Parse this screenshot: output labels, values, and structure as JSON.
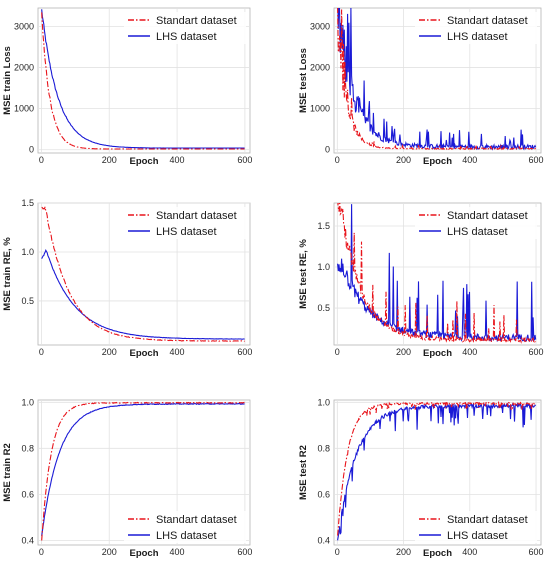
{
  "colors": {
    "standart": "#e8141b",
    "lhs": "#1a1ad6",
    "grid": "#e2e2e2",
    "axis": "#b5b5b5"
  },
  "legend": {
    "standart": "Standart dataset",
    "lhs": "LHS dataset",
    "position": "top-right"
  },
  "chart_data": [
    {
      "type": "line",
      "grid": true,
      "xlabel": "Epoch",
      "ylabel": "MSE train Loss",
      "xlim": [
        -10,
        615
      ],
      "ylim": [
        -80,
        3450
      ],
      "xticks": [
        0,
        200,
        400,
        600
      ],
      "yticks": [
        0,
        1000,
        2000,
        3000
      ],
      "xtick_labels": [
        "0",
        "200",
        "400",
        "600"
      ],
      "ytick_labels": [
        "0",
        "1000",
        "2000",
        "3000"
      ],
      "series": [
        {
          "name": "Standart dataset",
          "style": "dashdot",
          "start": 3250,
          "end": 18,
          "tau": 25,
          "noise": 0.05,
          "spikes": 0
        },
        {
          "name": "LHS dataset",
          "style": "solid",
          "start": 3400,
          "end": 40,
          "tau": 48,
          "noise": 0.03,
          "spikes": 0
        }
      ]
    },
    {
      "type": "line",
      "grid": true,
      "xlabel": "Epoch",
      "ylabel": "MSE test Loss",
      "xlim": [
        -10,
        615
      ],
      "ylim": [
        -80,
        3450
      ],
      "xticks": [
        0,
        200,
        400,
        600
      ],
      "yticks": [
        0,
        1000,
        2000,
        3000
      ],
      "xtick_labels": [
        "0",
        "200",
        "400",
        "600"
      ],
      "ytick_labels": [
        "0",
        "1000",
        "2000",
        "3000"
      ],
      "series": [
        {
          "name": "Standart dataset",
          "style": "dashdot",
          "start": 3200,
          "end": 25,
          "tau": 28,
          "noise": 0.35,
          "spikes": 0.25
        },
        {
          "name": "LHS dataset",
          "style": "solid",
          "start": 3350,
          "end": 70,
          "tau": 50,
          "noise": 0.5,
          "spikes": 0.45
        }
      ]
    },
    {
      "type": "line",
      "grid": true,
      "xlabel": "Epoch",
      "ylabel": "MSE train RE, %",
      "xlim": [
        -10,
        615
      ],
      "ylim": [
        0.05,
        1.5
      ],
      "xticks": [
        0,
        200,
        400,
        600
      ],
      "yticks": [
        0.5,
        1.0,
        1.5
      ],
      "xtick_labels": [
        "0",
        "200",
        "400",
        "600"
      ],
      "ytick_labels": [
        "0.5",
        "1.0",
        "1.5"
      ],
      "series": [
        {
          "name": "Standart dataset",
          "style": "dashdot",
          "start": 1.45,
          "end": 0.09,
          "tau": 70,
          "noise": 0.02,
          "spikes": 0,
          "peak": 1.45,
          "peakAt": 12
        },
        {
          "name": "LHS dataset",
          "style": "solid",
          "start": 0.92,
          "end": 0.11,
          "tau": 85,
          "noise": 0.01,
          "spikes": 0,
          "peak": 1.02,
          "peakAt": 14
        }
      ]
    },
    {
      "type": "line",
      "grid": true,
      "xlabel": "Epoch",
      "ylabel": "MSE test RE, %",
      "xlim": [
        -10,
        615
      ],
      "ylim": [
        0.05,
        1.78
      ],
      "xticks": [
        0,
        200,
        400,
        600
      ],
      "yticks": [
        0.5,
        1.0,
        1.5
      ],
      "xtick_labels": [
        "0",
        "200",
        "400",
        "600"
      ],
      "ytick_labels": [
        "0.5",
        "1.0",
        "1.5"
      ],
      "series": [
        {
          "name": "Standart dataset",
          "style": "dashdot",
          "start": 1.75,
          "end": 0.11,
          "tau": 62,
          "noise": 0.15,
          "spikes": 0.3,
          "peak": 1.75,
          "peakAt": 10
        },
        {
          "name": "LHS dataset",
          "style": "solid",
          "start": 0.95,
          "end": 0.14,
          "tau": 80,
          "noise": 0.2,
          "spikes": 0.4,
          "peak": 1.05,
          "peakAt": 14
        }
      ]
    },
    {
      "type": "line",
      "grid": true,
      "xlabel": "Epoch",
      "ylabel": "MSE train R2",
      "xlim": [
        -10,
        615
      ],
      "ylim": [
        0.38,
        1.01
      ],
      "xticks": [
        0,
        200,
        400,
        600
      ],
      "yticks": [
        0.4,
        0.6,
        0.8,
        1.0
      ],
      "xtick_labels": [
        "0",
        "200",
        "400",
        "600"
      ],
      "ytick_labels": [
        "0.4",
        "0.6",
        "0.8",
        "1.0"
      ],
      "series": [
        {
          "name": "Standart dataset",
          "style": "dashdot",
          "start": 0.4,
          "end": 0.998,
          "tau": 28,
          "noise": 0.0015,
          "spikes": 0
        },
        {
          "name": "LHS dataset",
          "style": "solid",
          "start": 0.42,
          "end": 0.993,
          "tau": 52,
          "noise": 0.0015,
          "spikes": 0
        }
      ]
    },
    {
      "type": "line",
      "grid": true,
      "xlabel": "Epoch",
      "ylabel": "MSE test R2",
      "xlim": [
        -10,
        615
      ],
      "ylim": [
        0.38,
        1.01
      ],
      "xticks": [
        0,
        200,
        400,
        600
      ],
      "yticks": [
        0.4,
        0.6,
        0.8,
        1.0
      ],
      "xtick_labels": [
        "0",
        "200",
        "400",
        "600"
      ],
      "ytick_labels": [
        "0.4",
        "0.6",
        "0.8",
        "1.0"
      ],
      "series": [
        {
          "name": "Standart dataset",
          "style": "dashdot",
          "start": 0.42,
          "end": 0.995,
          "tau": 30,
          "noise": 0.004,
          "spikes": 0.02
        },
        {
          "name": "LHS dataset",
          "style": "solid",
          "start": 0.4,
          "end": 0.985,
          "tau": 55,
          "noise": 0.008,
          "spikes": 0.06
        }
      ]
    }
  ]
}
